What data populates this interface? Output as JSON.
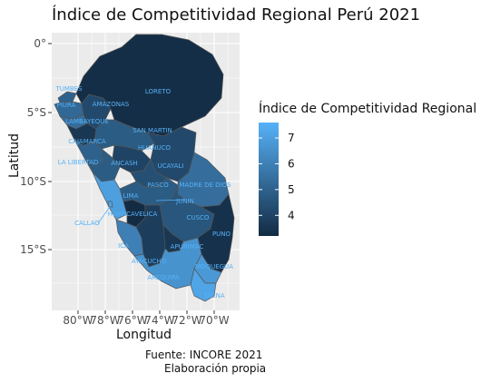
{
  "title": "Índice de Competitividad Regional Perú 2021",
  "legend": {
    "title": "Índice de Competitividad Regional",
    "ticks": [
      "7",
      "6",
      "5",
      "4"
    ],
    "ticks_values": [
      7,
      6,
      5,
      4
    ],
    "range": [
      3.2,
      7.6
    ],
    "colors": {
      "low": "#132b43",
      "high": "#56b1f7"
    }
  },
  "axes": {
    "xlabel": "Longitud",
    "ylabel": "Latitud",
    "xticks": [
      "80°W",
      "78°W",
      "76°W",
      "74°W",
      "72°W",
      "70°W"
    ],
    "yticks": [
      "0°",
      "5°S",
      "10°S",
      "15°S"
    ]
  },
  "caption": {
    "line1": "Fuente: INCORE 2021",
    "line2": "Elaboración propia"
  },
  "regions": [
    {
      "name": "TUMBES",
      "value": 5.0
    },
    {
      "name": "PIURA",
      "value": 5.2
    },
    {
      "name": "LAMBAYEQUE",
      "value": 5.4
    },
    {
      "name": "CAJAMARCA",
      "value": 3.6
    },
    {
      "name": "LA LIBERTAD",
      "value": 5.0
    },
    {
      "name": "AMAZONAS",
      "value": 4.2
    },
    {
      "name": "LORETO",
      "value": 3.3
    },
    {
      "name": "SAN MARTIN",
      "value": 4.8
    },
    {
      "name": "HUANUCO",
      "value": 4.0
    },
    {
      "name": "ANCASH",
      "value": 4.8
    },
    {
      "name": "UCAYALI",
      "value": 4.2
    },
    {
      "name": "PASCO",
      "value": 4.4
    },
    {
      "name": "JUNIN",
      "value": 4.8
    },
    {
      "name": "LIMA",
      "value": 7.0
    },
    {
      "name": "CALLAO",
      "value": 7.2
    },
    {
      "name": "HUANCAVELICA",
      "value": 3.2
    },
    {
      "name": "MADRE DE DIOS",
      "value": 5.4
    },
    {
      "name": "CUSCO",
      "value": 4.6
    },
    {
      "name": "PUNO",
      "value": 3.4
    },
    {
      "name": "ICA",
      "value": 6.0
    },
    {
      "name": "AYACUCHO",
      "value": 3.8
    },
    {
      "name": "APURIMAC",
      "value": 3.6
    },
    {
      "name": "AREQUIPA",
      "value": 6.6
    },
    {
      "name": "MOQUEGUA",
      "value": 6.8
    },
    {
      "name": "TACNA",
      "value": 7.2
    }
  ]
}
